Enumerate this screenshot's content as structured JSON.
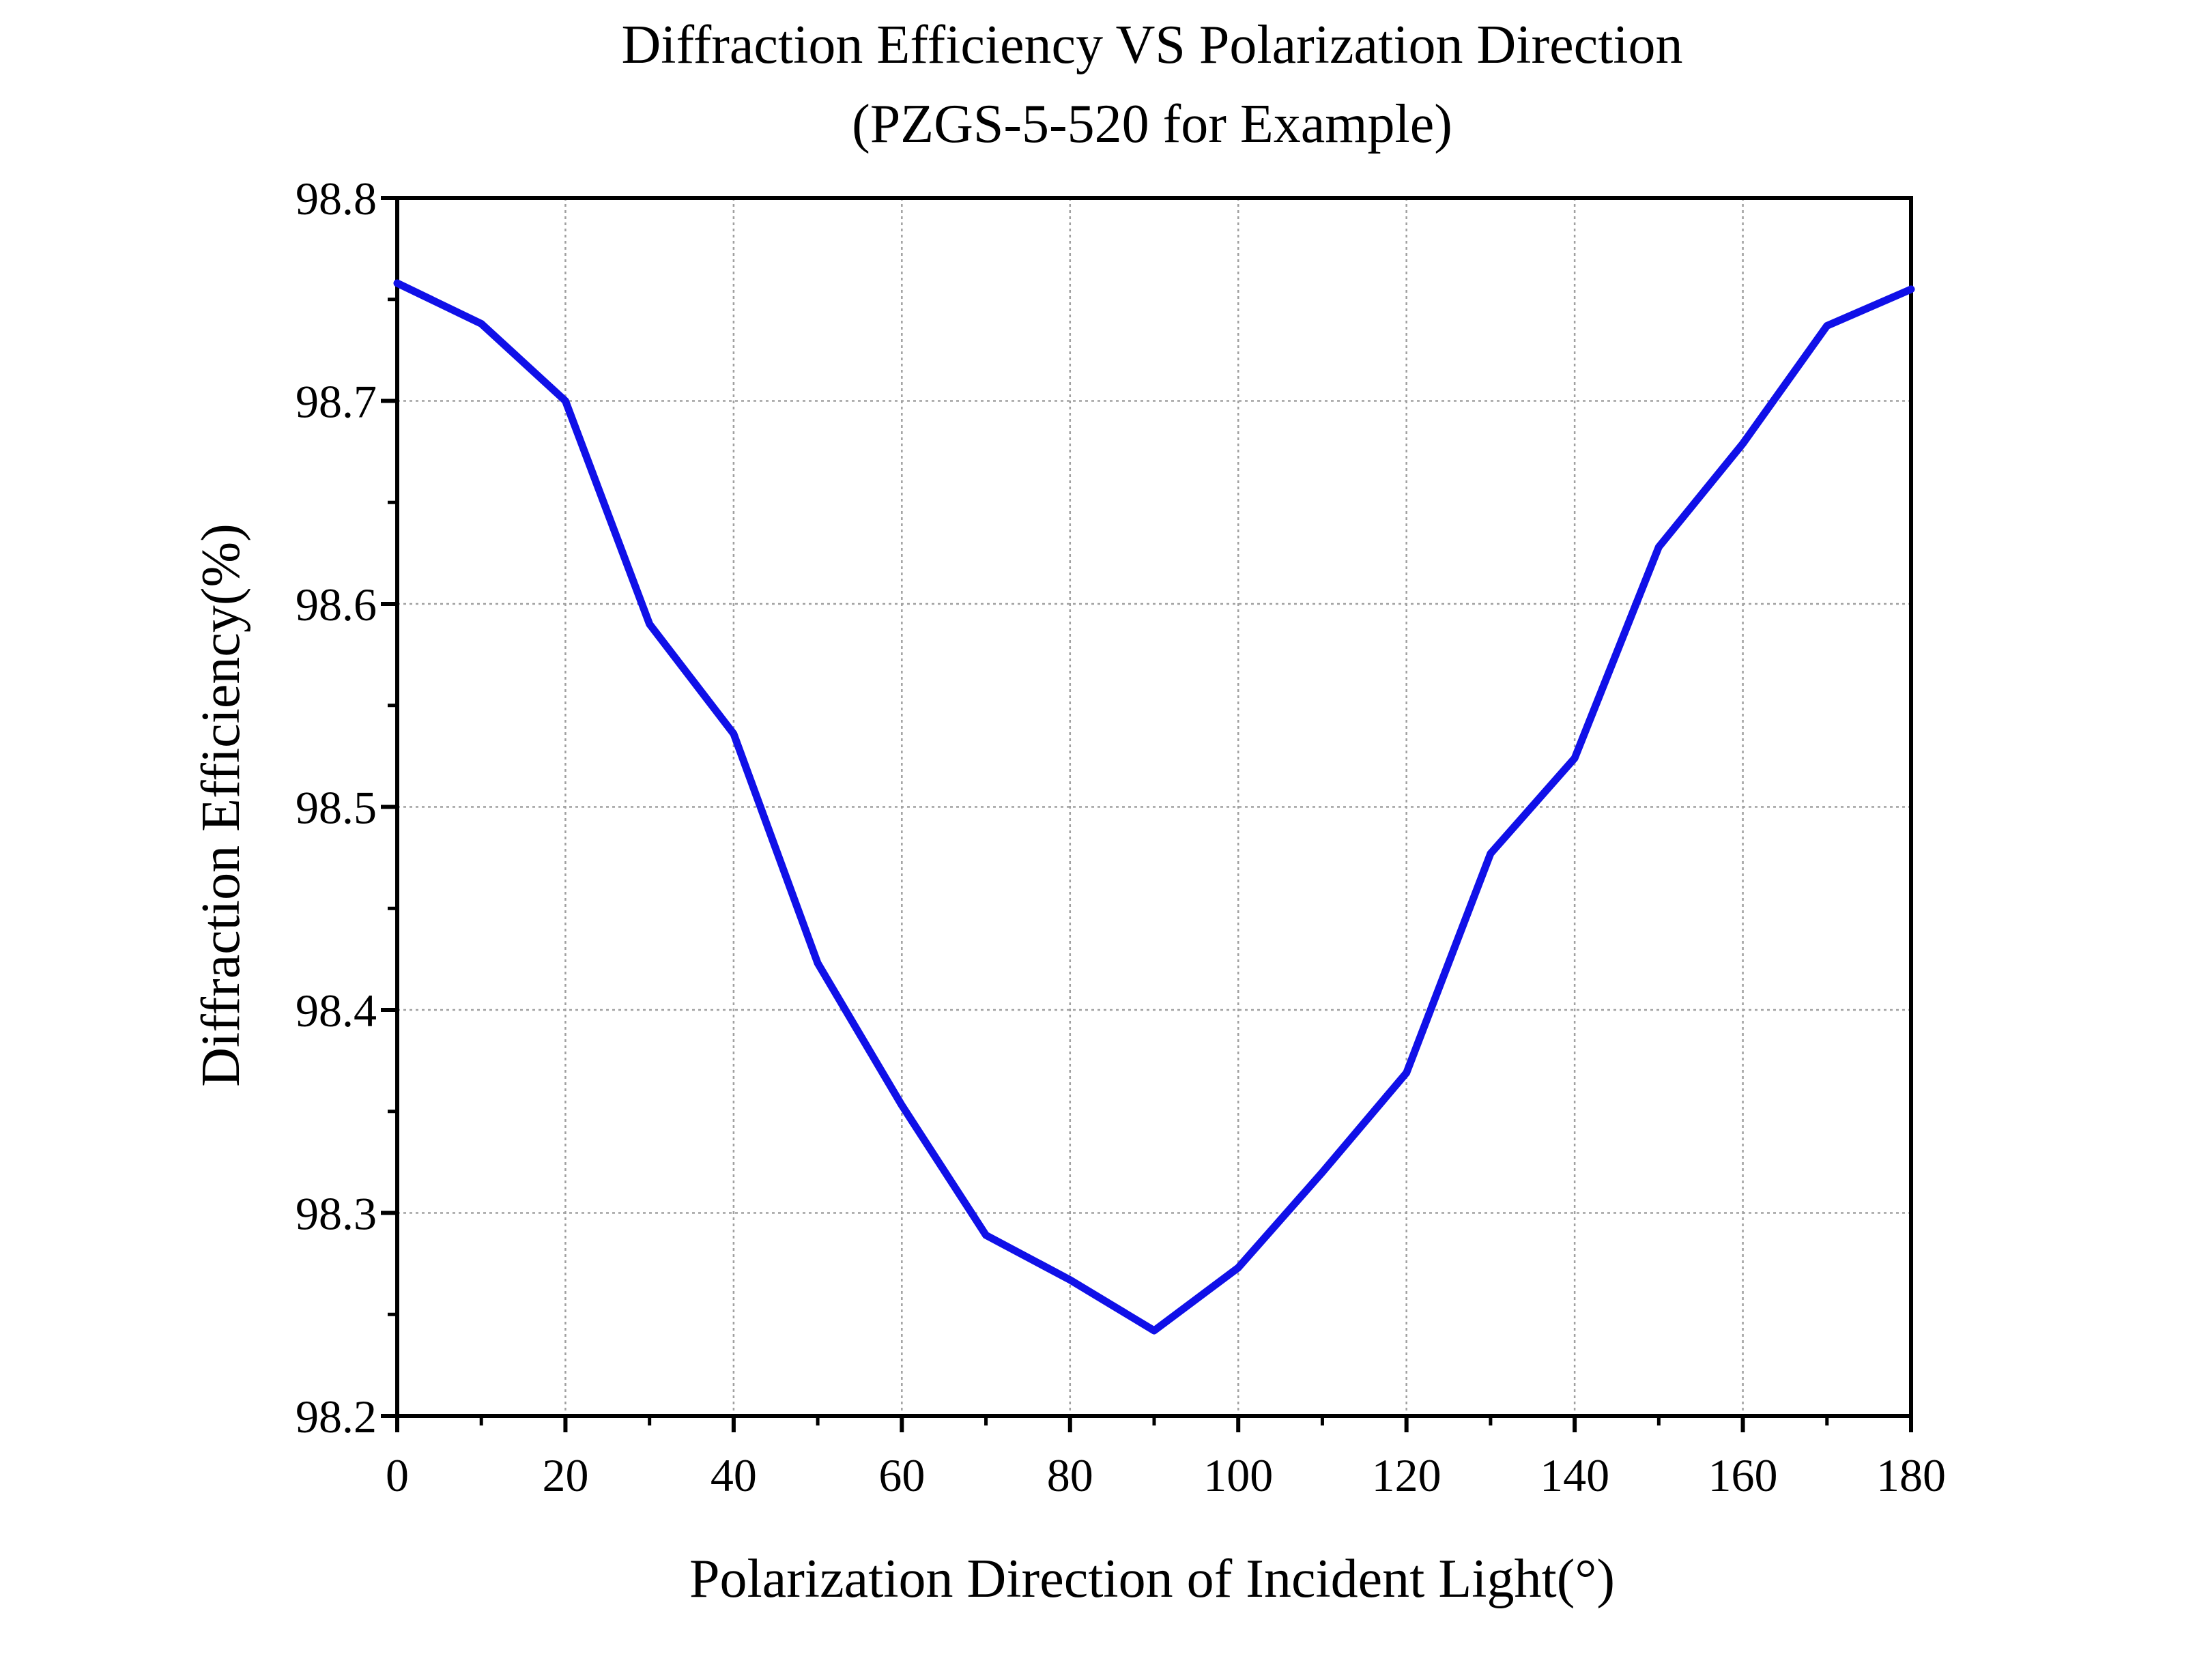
{
  "chart_data": {
    "type": "line",
    "title": "Diffraction Efficiency VS Polarization Direction",
    "subtitle": "(PZGS-5-520 for Example)",
    "xlabel": "Polarization Direction of Incident Light(°)",
    "ylabel": "Diffraction Efficiency(%)",
    "xlim": [
      0,
      180
    ],
    "ylim": [
      98.2,
      98.8
    ],
    "x_ticks": [
      0,
      20,
      40,
      60,
      80,
      100,
      120,
      140,
      160,
      180
    ],
    "y_ticks": [
      98.2,
      98.3,
      98.4,
      98.5,
      98.6,
      98.7,
      98.8
    ],
    "x_tick_labels": [
      "0",
      "20",
      "40",
      "60",
      "80",
      "100",
      "120",
      "140",
      "160",
      "180"
    ],
    "y_tick_labels": [
      "98.2",
      "98.3",
      "98.4",
      "98.5",
      "98.6",
      "98.7",
      "98.8"
    ],
    "grid": true,
    "legend": "none",
    "colors": {
      "line": "#1010e8",
      "axis": "#000000",
      "grid": "#a0a0a0"
    },
    "series": [
      {
        "x": [
          0,
          10,
          20,
          30,
          40,
          50,
          60,
          70,
          80,
          90,
          100,
          110,
          120,
          130,
          140,
          150,
          160,
          170,
          180
        ],
        "values": [
          98.758,
          98.738,
          98.7,
          98.59,
          98.536,
          98.423,
          98.353,
          98.289,
          98.267,
          98.242,
          98.273,
          98.32,
          98.369,
          98.477,
          98.524,
          98.628,
          98.679,
          98.737,
          98.755
        ]
      }
    ]
  }
}
